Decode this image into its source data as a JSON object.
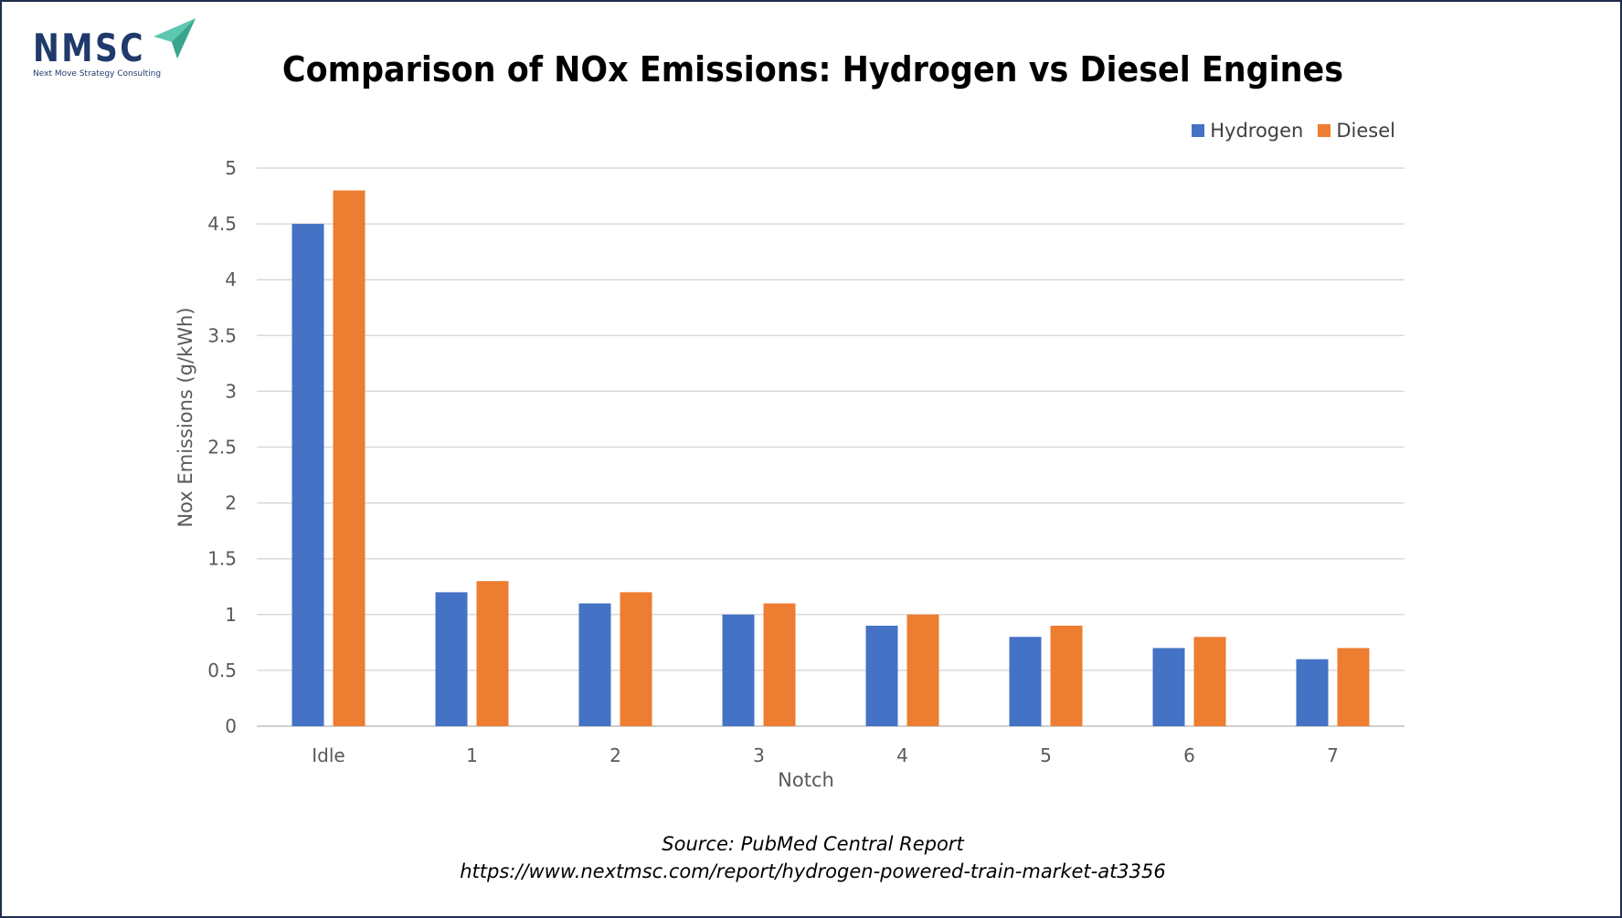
{
  "logo": {
    "text": "NMSC",
    "subtitle": "Next Move Strategy Consulting"
  },
  "colors": {
    "hydrogen": "#4472c4",
    "diesel": "#ed7d31",
    "grid": "#d9d9d9",
    "axis_text": "#595959",
    "frame": "#1f2d4f",
    "logo": "#1f3a6b",
    "logo_accent": "#5ec7b0"
  },
  "chart_data": {
    "type": "bar",
    "title": "Comparison of NOx Emissions: Hydrogen vs Diesel Engines",
    "xlabel": "Notch",
    "ylabel": "Nox Emissions (g/kWh)",
    "categories": [
      "Idle",
      "1",
      "2",
      "3",
      "4",
      "5",
      "6",
      "7"
    ],
    "series": [
      {
        "name": "Hydrogen",
        "color": "#4472c4",
        "values": [
          4.5,
          1.2,
          1.1,
          1.0,
          0.9,
          0.8,
          0.7,
          0.6
        ]
      },
      {
        "name": "Diesel",
        "color": "#ed7d31",
        "values": [
          4.8,
          1.3,
          1.2,
          1.1,
          1.0,
          0.9,
          0.8,
          0.7
        ]
      }
    ],
    "ylim": [
      0,
      5
    ],
    "yticks": [
      "0",
      "0.5",
      "1",
      "1.5",
      "2",
      "2.5",
      "3",
      "3.5",
      "4",
      "4.5",
      "5"
    ],
    "grid": true,
    "legend_position": "top-right"
  },
  "source": {
    "line1": "Source: PubMed Central Report",
    "line2": "https://www.nextmsc.com/report/hydrogen-powered-train-market-at3356"
  }
}
